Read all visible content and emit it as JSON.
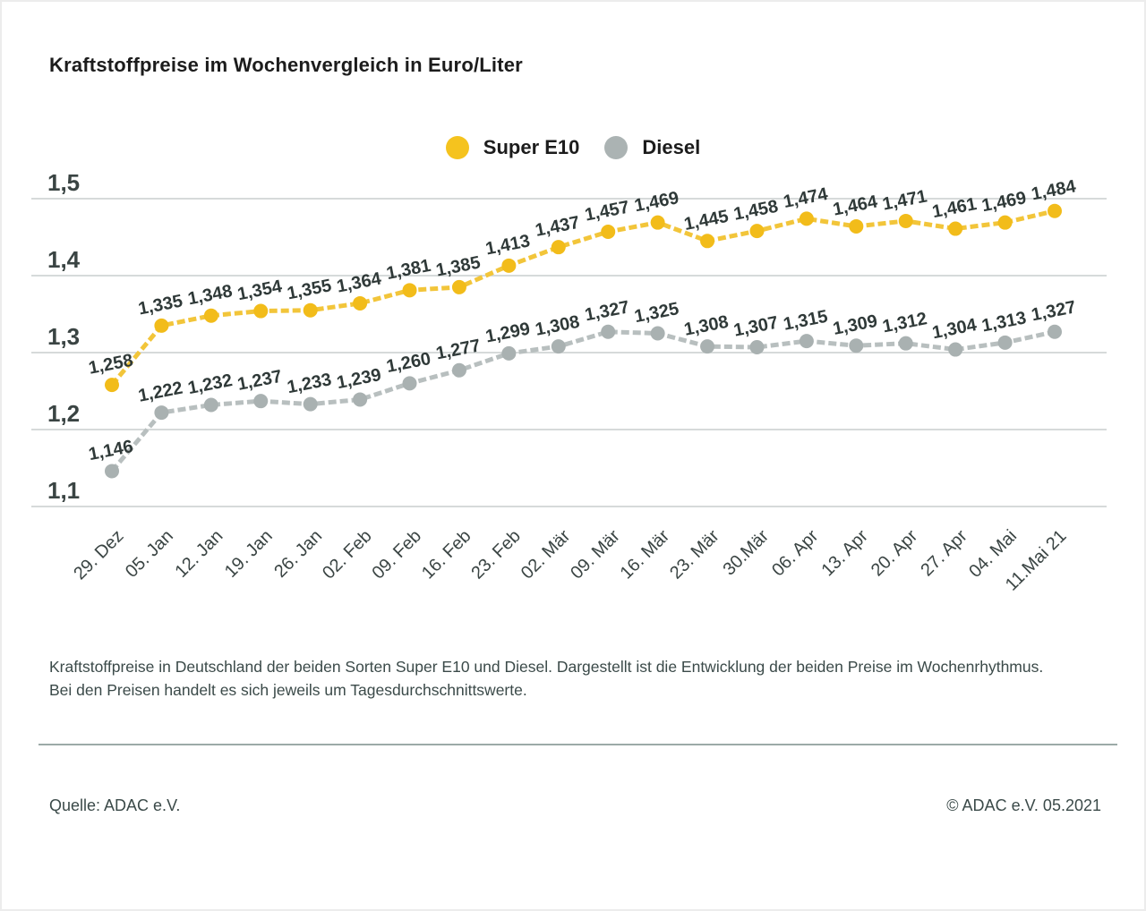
{
  "page": {
    "title": "Kraftstoffpreise im Wochenvergleich in Euro/Liter",
    "caption": "Kraftstoffpreise in Deutschland der beiden Sorten Super E10 und Diesel. Dargestellt ist die Entwicklung der beiden Preise im Wochenrhythmus. Bei den Preisen handelt es sich jeweils um Tagesdurchschnittswerte.",
    "source_left": "Quelle: ADAC e.V.",
    "source_right": "© ADAC e.V. 05.2021"
  },
  "colors": {
    "super_e10_dot": "#F2BC1A",
    "super_e10_line": "#F2C53A",
    "diesel_dot": "#A9B1B1",
    "diesel_line": "#B8BFBF",
    "grid": "#C8CECD",
    "axis_text": "#3A4443",
    "value_label_text": "#2F3938",
    "legend_super": "#F5C31E",
    "legend_diesel": "#ABB3B3"
  },
  "chart_data": {
    "type": "line",
    "title": "Kraftstoffpreise im Wochenvergleich in Euro/Liter",
    "xlabel": "",
    "ylabel": "Euro/Liter",
    "ylim": [
      1.1,
      1.5
    ],
    "yticks": [
      1.5,
      1.4,
      1.3,
      1.2,
      1.1
    ],
    "ytick_labels": [
      "1,5",
      "1,4",
      "1,3",
      "1,2",
      "1,1"
    ],
    "grid": true,
    "legend_position": "top-center",
    "value_labels": true,
    "decimal_style": "german-comma",
    "categories": [
      "29. Dez",
      "05. Jan",
      "12. Jan",
      "19. Jan",
      "26. Jan",
      "02. Feb",
      "09. Feb",
      "16. Feb",
      "23. Feb",
      "02. Mär",
      "09. Mär",
      "16. Mär",
      "23. Mär",
      "30.Mär",
      "06. Apr",
      "13. Apr",
      "20. Apr",
      "27. Apr",
      "04. Mai",
      "11.Mai 21"
    ],
    "series": [
      {
        "name": "Super E10",
        "values": [
          1.258,
          1.335,
          1.348,
          1.354,
          1.355,
          1.364,
          1.381,
          1.385,
          1.413,
          1.437,
          1.457,
          1.469,
          1.445,
          1.458,
          1.474,
          1.464,
          1.471,
          1.461,
          1.469,
          1.484
        ],
        "labels": [
          "1,258",
          "1,335",
          "1,348",
          "1,354",
          "1,355",
          "1,364",
          "1,381",
          "1,385",
          "1,413",
          "1,437",
          "1,457",
          "1,469",
          "1,445",
          "1,458",
          "1,474",
          "1,464",
          "1,471",
          "1,461",
          "1,469",
          "1,484"
        ]
      },
      {
        "name": "Diesel",
        "values": [
          1.146,
          1.222,
          1.232,
          1.237,
          1.233,
          1.239,
          1.26,
          1.277,
          1.299,
          1.308,
          1.327,
          1.325,
          1.308,
          1.307,
          1.315,
          1.309,
          1.312,
          1.304,
          1.313,
          1.327
        ],
        "labels": [
          "1,146",
          "1,222",
          "1,232",
          "1,237",
          "1,233",
          "1,239",
          "1,260",
          "1,277",
          "1,299",
          "1,308",
          "1,327",
          "1,325",
          "1,308",
          "1,307",
          "1,315",
          "1,309",
          "1,312",
          "1,304",
          "1,313",
          "1,327"
        ]
      }
    ]
  }
}
